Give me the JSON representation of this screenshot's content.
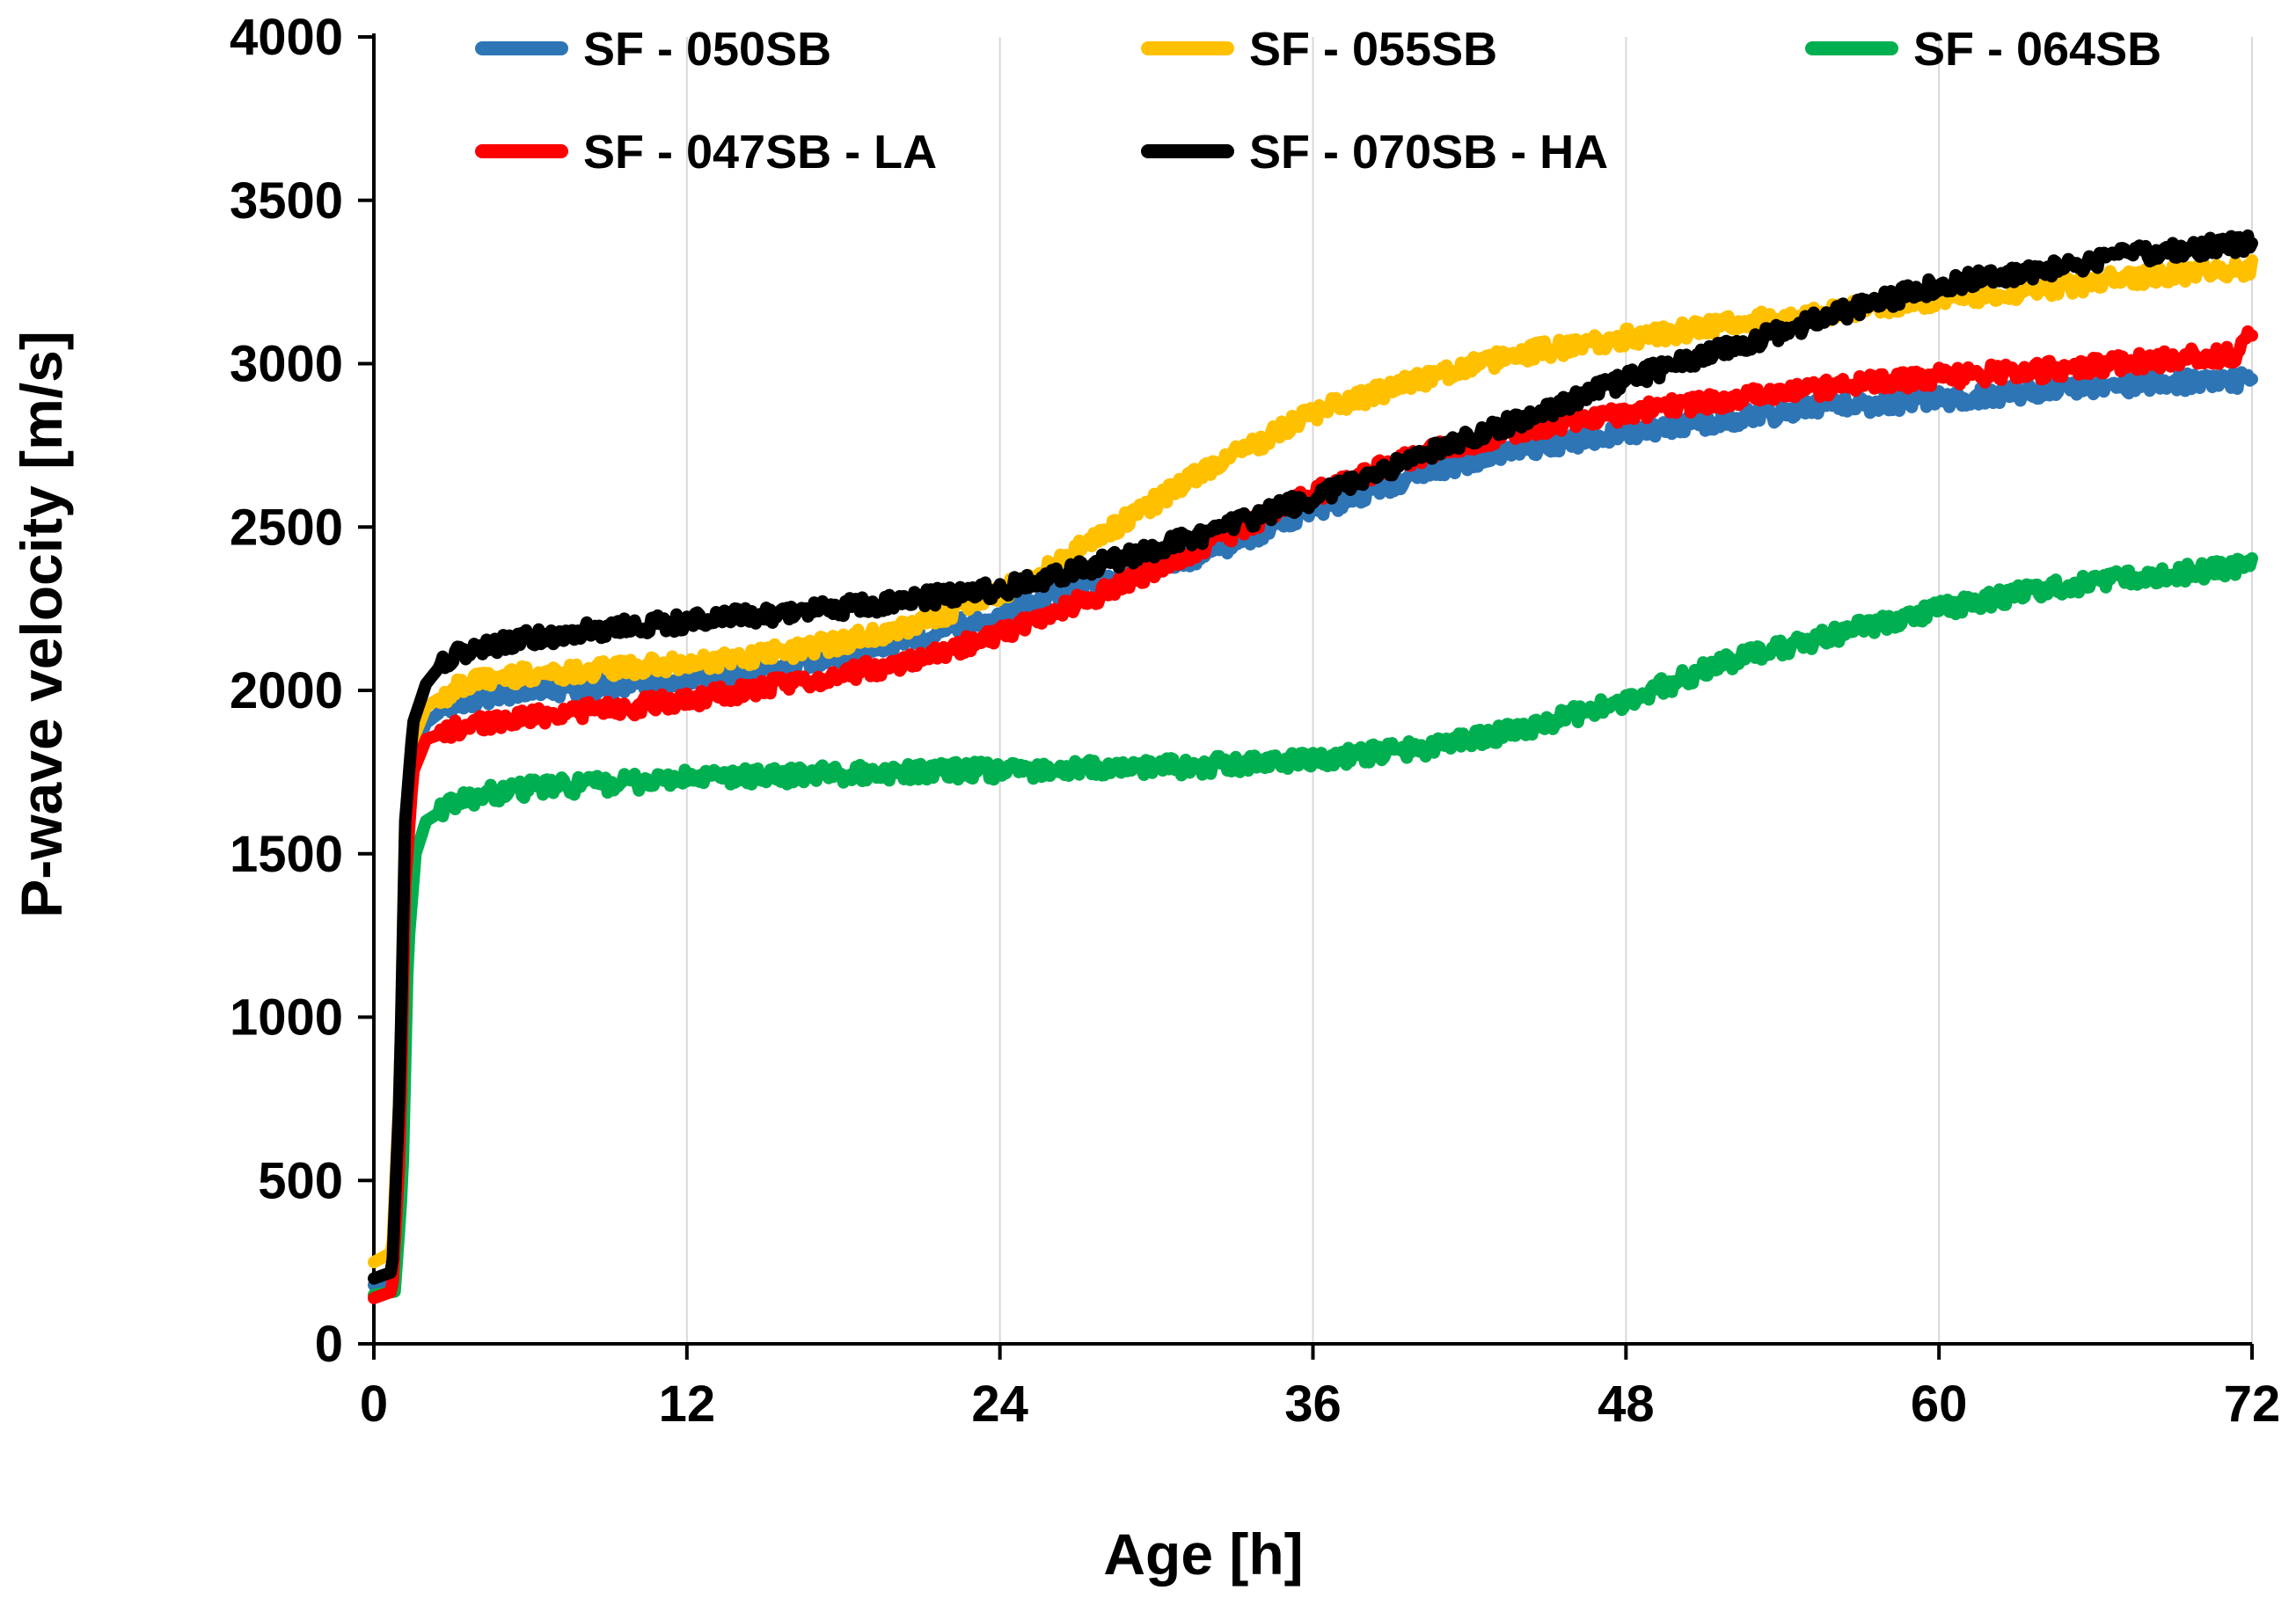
{
  "chart_data": {
    "type": "line",
    "title": "",
    "xlabel": "Age [h]",
    "ylabel": "P-wave velocity [m/s]",
    "xlim": [
      0,
      72
    ],
    "ylim": [
      0,
      4000
    ],
    "xticks": [
      0,
      12,
      24,
      36,
      48,
      60,
      72
    ],
    "yticks": [
      0,
      500,
      1000,
      1500,
      2000,
      2500,
      3000,
      3500,
      4000
    ],
    "grid": "vertical",
    "legend_position": "top",
    "series": [
      {
        "name": "SF - 050SB",
        "color": "#2e75b6",
        "x": [
          0,
          0.7,
          1.0,
          1.2,
          1.5,
          2,
          3,
          4,
          6,
          8,
          10,
          12,
          16,
          20,
          24,
          28,
          32,
          36,
          40,
          44,
          48,
          52,
          56,
          60,
          64,
          68,
          72
        ],
        "y": [
          180,
          200,
          700,
          1500,
          1800,
          1900,
          1960,
          1980,
          2000,
          2010,
          2020,
          2030,
          2080,
          2150,
          2230,
          2340,
          2420,
          2550,
          2660,
          2740,
          2790,
          2830,
          2870,
          2890,
          2920,
          2940,
          2950
        ]
      },
      {
        "name": "SF - 055SB",
        "color": "#ffc000",
        "x": [
          0,
          0.7,
          1.0,
          1.2,
          1.5,
          2,
          3,
          4,
          6,
          8,
          10,
          12,
          16,
          20,
          24,
          26,
          28,
          30,
          32,
          34,
          36,
          38,
          40,
          44,
          48,
          52,
          56,
          60,
          64,
          68,
          72
        ],
        "y": [
          250,
          280,
          800,
          1600,
          1850,
          1950,
          2000,
          2030,
          2050,
          2060,
          2070,
          2080,
          2120,
          2180,
          2300,
          2380,
          2480,
          2580,
          2680,
          2760,
          2850,
          2900,
          2950,
          3030,
          3080,
          3120,
          3160,
          3200,
          3230,
          3270,
          3290
        ]
      },
      {
        "name": "SF - 064SB",
        "color": "#00b050",
        "x": [
          0,
          0.8,
          1.1,
          1.3,
          1.6,
          2,
          3,
          4,
          6,
          8,
          10,
          12,
          16,
          20,
          24,
          28,
          32,
          36,
          40,
          44,
          48,
          52,
          56,
          60,
          64,
          68,
          72
        ],
        "y": [
          150,
          160,
          500,
          1200,
          1500,
          1600,
          1650,
          1680,
          1700,
          1710,
          1720,
          1730,
          1740,
          1750,
          1755,
          1760,
          1770,
          1790,
          1820,
          1880,
          1970,
          2090,
          2170,
          2250,
          2310,
          2350,
          2380
        ]
      },
      {
        "name": "SF - 047SB - LA",
        "color": "#ff0000",
        "x": [
          0,
          0.7,
          1.0,
          1.2,
          1.5,
          2,
          3,
          4,
          6,
          8,
          10,
          12,
          16,
          20,
          24,
          28,
          32,
          36,
          40,
          44,
          48,
          52,
          56,
          60,
          64,
          68,
          71.5,
          72
        ],
        "y": [
          140,
          160,
          600,
          1400,
          1750,
          1850,
          1880,
          1900,
          1920,
          1940,
          1950,
          1970,
          2020,
          2080,
          2170,
          2300,
          2450,
          2600,
          2720,
          2800,
          2850,
          2890,
          2930,
          2960,
          2980,
          3010,
          3030,
          3100
        ]
      },
      {
        "name": "SF - 070SB - HA",
        "color": "#000000",
        "x": [
          0,
          0.7,
          1.0,
          1.2,
          1.5,
          2,
          2.5,
          3,
          4,
          6,
          8,
          10,
          12,
          16,
          20,
          24,
          28,
          32,
          36,
          40,
          44,
          48,
          52,
          56,
          60,
          64,
          68,
          72
        ],
        "y": [
          200,
          220,
          800,
          1600,
          1900,
          2020,
          2070,
          2100,
          2130,
          2160,
          2180,
          2200,
          2210,
          2240,
          2270,
          2310,
          2390,
          2480,
          2590,
          2710,
          2830,
          2950,
          3050,
          3150,
          3240,
          3290,
          3340,
          3370
        ]
      }
    ]
  }
}
